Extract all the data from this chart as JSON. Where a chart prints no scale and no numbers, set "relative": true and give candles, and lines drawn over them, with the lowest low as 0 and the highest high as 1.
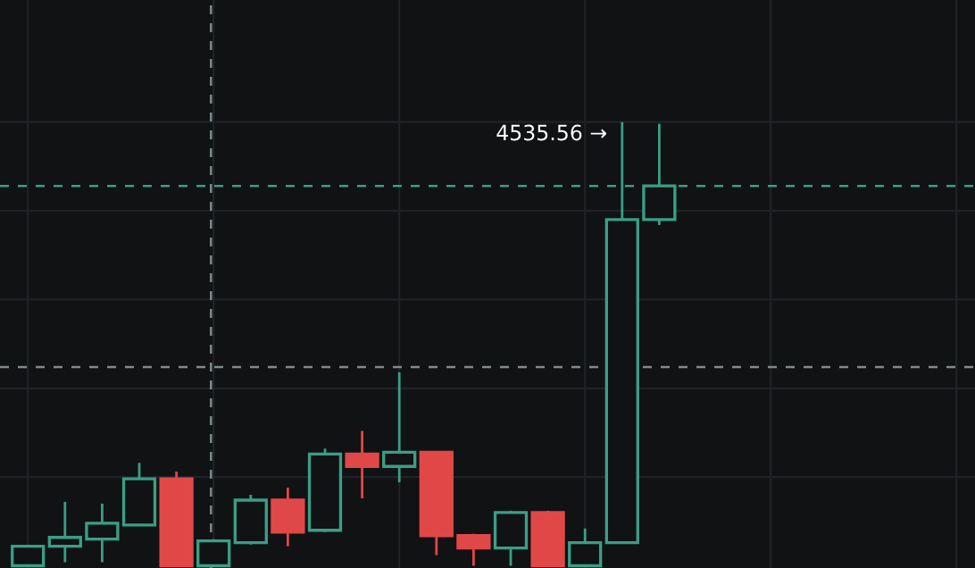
{
  "chart_data": {
    "type": "candlestick",
    "relative": true,
    "categories": [
      null,
      null,
      null,
      null,
      null,
      null,
      null,
      null,
      null,
      null,
      null,
      null,
      null,
      null,
      null,
      null,
      null,
      null
    ],
    "ohlc": [
      [
        0,
        0.044,
        0,
        0.044
      ],
      [
        0.044,
        0.144,
        0.008,
        0.064
      ],
      [
        0.06,
        0.14,
        0.008,
        0.096
      ],
      [
        0.092,
        0.232,
        0.09,
        0.196
      ],
      [
        0.196,
        0.212,
        0,
        0
      ],
      [
        0,
        0.06,
        0,
        0.056
      ],
      [
        0.052,
        0.16,
        0.048,
        0.148
      ],
      [
        0.148,
        0.176,
        0.044,
        0.076
      ],
      [
        0.08,
        0.264,
        0.076,
        0.252
      ],
      [
        0.252,
        0.304,
        0.152,
        0.224
      ],
      [
        0.224,
        0.436,
        0.188,
        0.256
      ],
      [
        0.256,
        0.256,
        0.024,
        0.068
      ],
      [
        0.068,
        0.072,
        0,
        0.04
      ],
      [
        0.04,
        0.124,
        0,
        0.12
      ],
      [
        0.12,
        0.124,
        0,
        0
      ],
      [
        0,
        0.084,
        0,
        0.052
      ],
      [
        0.052,
        1,
        0.052,
        0.78
      ],
      [
        0.78,
        0.996,
        0.768,
        0.856
      ]
    ],
    "colors": [
      "#3a9e86",
      "#3a9e86",
      "#3a9e86",
      "#3a9e86",
      "#e04848",
      "#3a9e86",
      "#3a9e86",
      "#e04848",
      "#3a9e86",
      "#e04848",
      "#3a9e86",
      "#e04848",
      "#e04848",
      "#3a9e86",
      "#e04848",
      "#3a9e86",
      "#3a9e86",
      "#3a9e86"
    ],
    "annotations": [
      "4535.56 →"
    ],
    "ref_lines": [
      {
        "axis": "y",
        "value": 0.856,
        "color": "#3a9e86",
        "line_style": "dashed"
      },
      {
        "axis": "y",
        "value": 0.448,
        "color": "#7f8a8a",
        "line_style": "dashed"
      }
    ],
    "grid": true
  }
}
